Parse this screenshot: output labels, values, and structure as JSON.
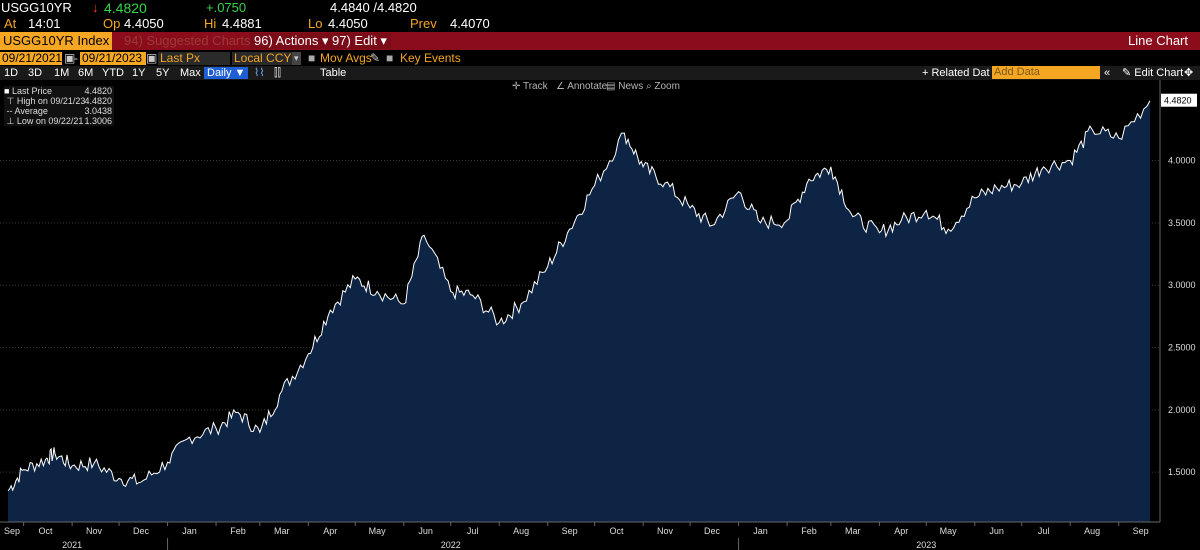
{
  "header": {
    "ticker": "USGG10YR",
    "arrow": "↓",
    "last": "4.4820",
    "change": "+.0750",
    "bid_ask": "4.4840 /4.4820",
    "at_label": "At",
    "time": "14:01",
    "op_label": "Op",
    "open": "4.4050",
    "hi_label": "Hi",
    "high": "4.4881",
    "lo_label": "Lo",
    "low": "4.4050",
    "prev_label": "Prev",
    "prev": "4.4070"
  },
  "toolbar": {
    "security": "USGG10YR Index",
    "suggested": "94) Suggested Charts",
    "actions": "96) Actions",
    "edit": "97) Edit",
    "chart_type": "Line Chart",
    "start_date": "09/21/2021",
    "end_date": "09/21/2023",
    "field": "Last Px",
    "currency": "Local CCY",
    "mov_avgs": "Mov Avgs",
    "key_events": "Key Events",
    "ranges": [
      "1D",
      "3D",
      "1M",
      "6M",
      "YTD",
      "1Y",
      "5Y",
      "Max"
    ],
    "period": "Daily",
    "table": "Table",
    "related": "+ Related Dat",
    "add_data_placeholder": "Add Data",
    "edit_chart": "Edit Chart",
    "track": "Track",
    "annotate": "Annotate",
    "news": "News",
    "zoom": "Zoom"
  },
  "legend": {
    "last_label": "Last Price",
    "last_value": "4.4820",
    "high_label": "High on 09/21/23",
    "high_value": "4.4820",
    "avg_label": "Average",
    "avg_value": "3.0438",
    "low_label": "Low on 09/22/21",
    "low_value": "1.3006"
  },
  "colors": {
    "line": "#ffffff",
    "fill": "#0e2444",
    "accent": "#f5a623",
    "bar": "#8b0d1b"
  },
  "chart_data": {
    "type": "area",
    "ylim": [
      1.1,
      4.55
    ],
    "yticks": [
      "1.5000",
      "2.0000",
      "2.5000",
      "3.0000",
      "3.5000",
      "4.0000"
    ],
    "ytick_values": [
      1.5,
      2.0,
      2.5,
      3.0,
      3.5,
      4.0
    ],
    "last_label": "4.4820",
    "months": [
      "Sep",
      "Oct",
      "Nov",
      "Dec",
      "Jan",
      "Feb",
      "Mar",
      "Apr",
      "May",
      "Jun",
      "Jul",
      "Aug",
      "Sep",
      "Oct",
      "Nov",
      "Dec",
      "Jan",
      "Feb",
      "Mar",
      "Apr",
      "May",
      "Jun",
      "Jul",
      "Aug",
      "Sep"
    ],
    "years": [
      "2021",
      "2022",
      "2023"
    ],
    "x": [
      "2021-09-21",
      "2021-10-01",
      "2021-10-15",
      "2021-10-21",
      "2021-11-01",
      "2021-11-15",
      "2021-12-01",
      "2021-12-15",
      "2022-01-01",
      "2022-01-15",
      "2022-02-01",
      "2022-02-15",
      "2022-03-01",
      "2022-03-15",
      "2022-04-01",
      "2022-04-15",
      "2022-05-01",
      "2022-05-15",
      "2022-06-01",
      "2022-06-14",
      "2022-07-01",
      "2022-07-15",
      "2022-08-01",
      "2022-08-15",
      "2022-09-01",
      "2022-09-15",
      "2022-10-01",
      "2022-10-20",
      "2022-11-01",
      "2022-11-15",
      "2022-12-01",
      "2022-12-15",
      "2023-01-01",
      "2023-01-15",
      "2023-02-01",
      "2023-02-15",
      "2023-03-01",
      "2023-03-15",
      "2023-04-01",
      "2023-04-15",
      "2023-05-01",
      "2023-05-15",
      "2023-06-01",
      "2023-06-15",
      "2023-07-01",
      "2023-07-15",
      "2023-08-01",
      "2023-08-15",
      "2023-09-01",
      "2023-09-21"
    ],
    "values": [
      1.35,
      1.52,
      1.6,
      1.65,
      1.55,
      1.57,
      1.45,
      1.42,
      1.58,
      1.78,
      1.85,
      1.98,
      1.82,
      2.15,
      2.45,
      2.8,
      3.05,
      2.95,
      2.85,
      3.4,
      2.95,
      2.92,
      2.7,
      2.85,
      3.15,
      3.45,
      3.8,
      4.22,
      3.95,
      3.82,
      3.62,
      3.48,
      3.75,
      3.5,
      3.52,
      3.85,
      3.95,
      3.55,
      3.42,
      3.52,
      3.6,
      3.45,
      3.7,
      3.78,
      3.82,
      3.95,
      4.0,
      4.25,
      4.18,
      4.48
    ]
  }
}
